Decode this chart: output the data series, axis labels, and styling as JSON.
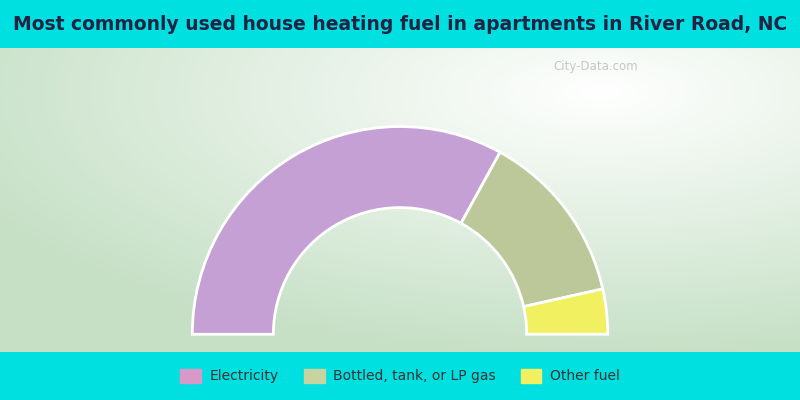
{
  "title": "Most commonly used house heating fuel in apartments in River Road, NC",
  "title_fontsize": 13.5,
  "segments": [
    {
      "label": "Electricity",
      "value": 66.0,
      "color": "#c4a0d4"
    },
    {
      "label": "Bottled, tank, or LP gas",
      "value": 27.0,
      "color": "#bcc89a"
    },
    {
      "label": "Other fuel",
      "value": 7.0,
      "color": "#f0f060"
    }
  ],
  "legend_colors": [
    "#d899c8",
    "#c8d4a0",
    "#f0f060"
  ],
  "legend_labels": [
    "Electricity",
    "Bottled, tank, or LP gas",
    "Other fuel"
  ],
  "watermark": "City-Data.com",
  "bg_cyan": "#00e0e0",
  "title_color": "#222244",
  "legend_text_color": "#333333"
}
